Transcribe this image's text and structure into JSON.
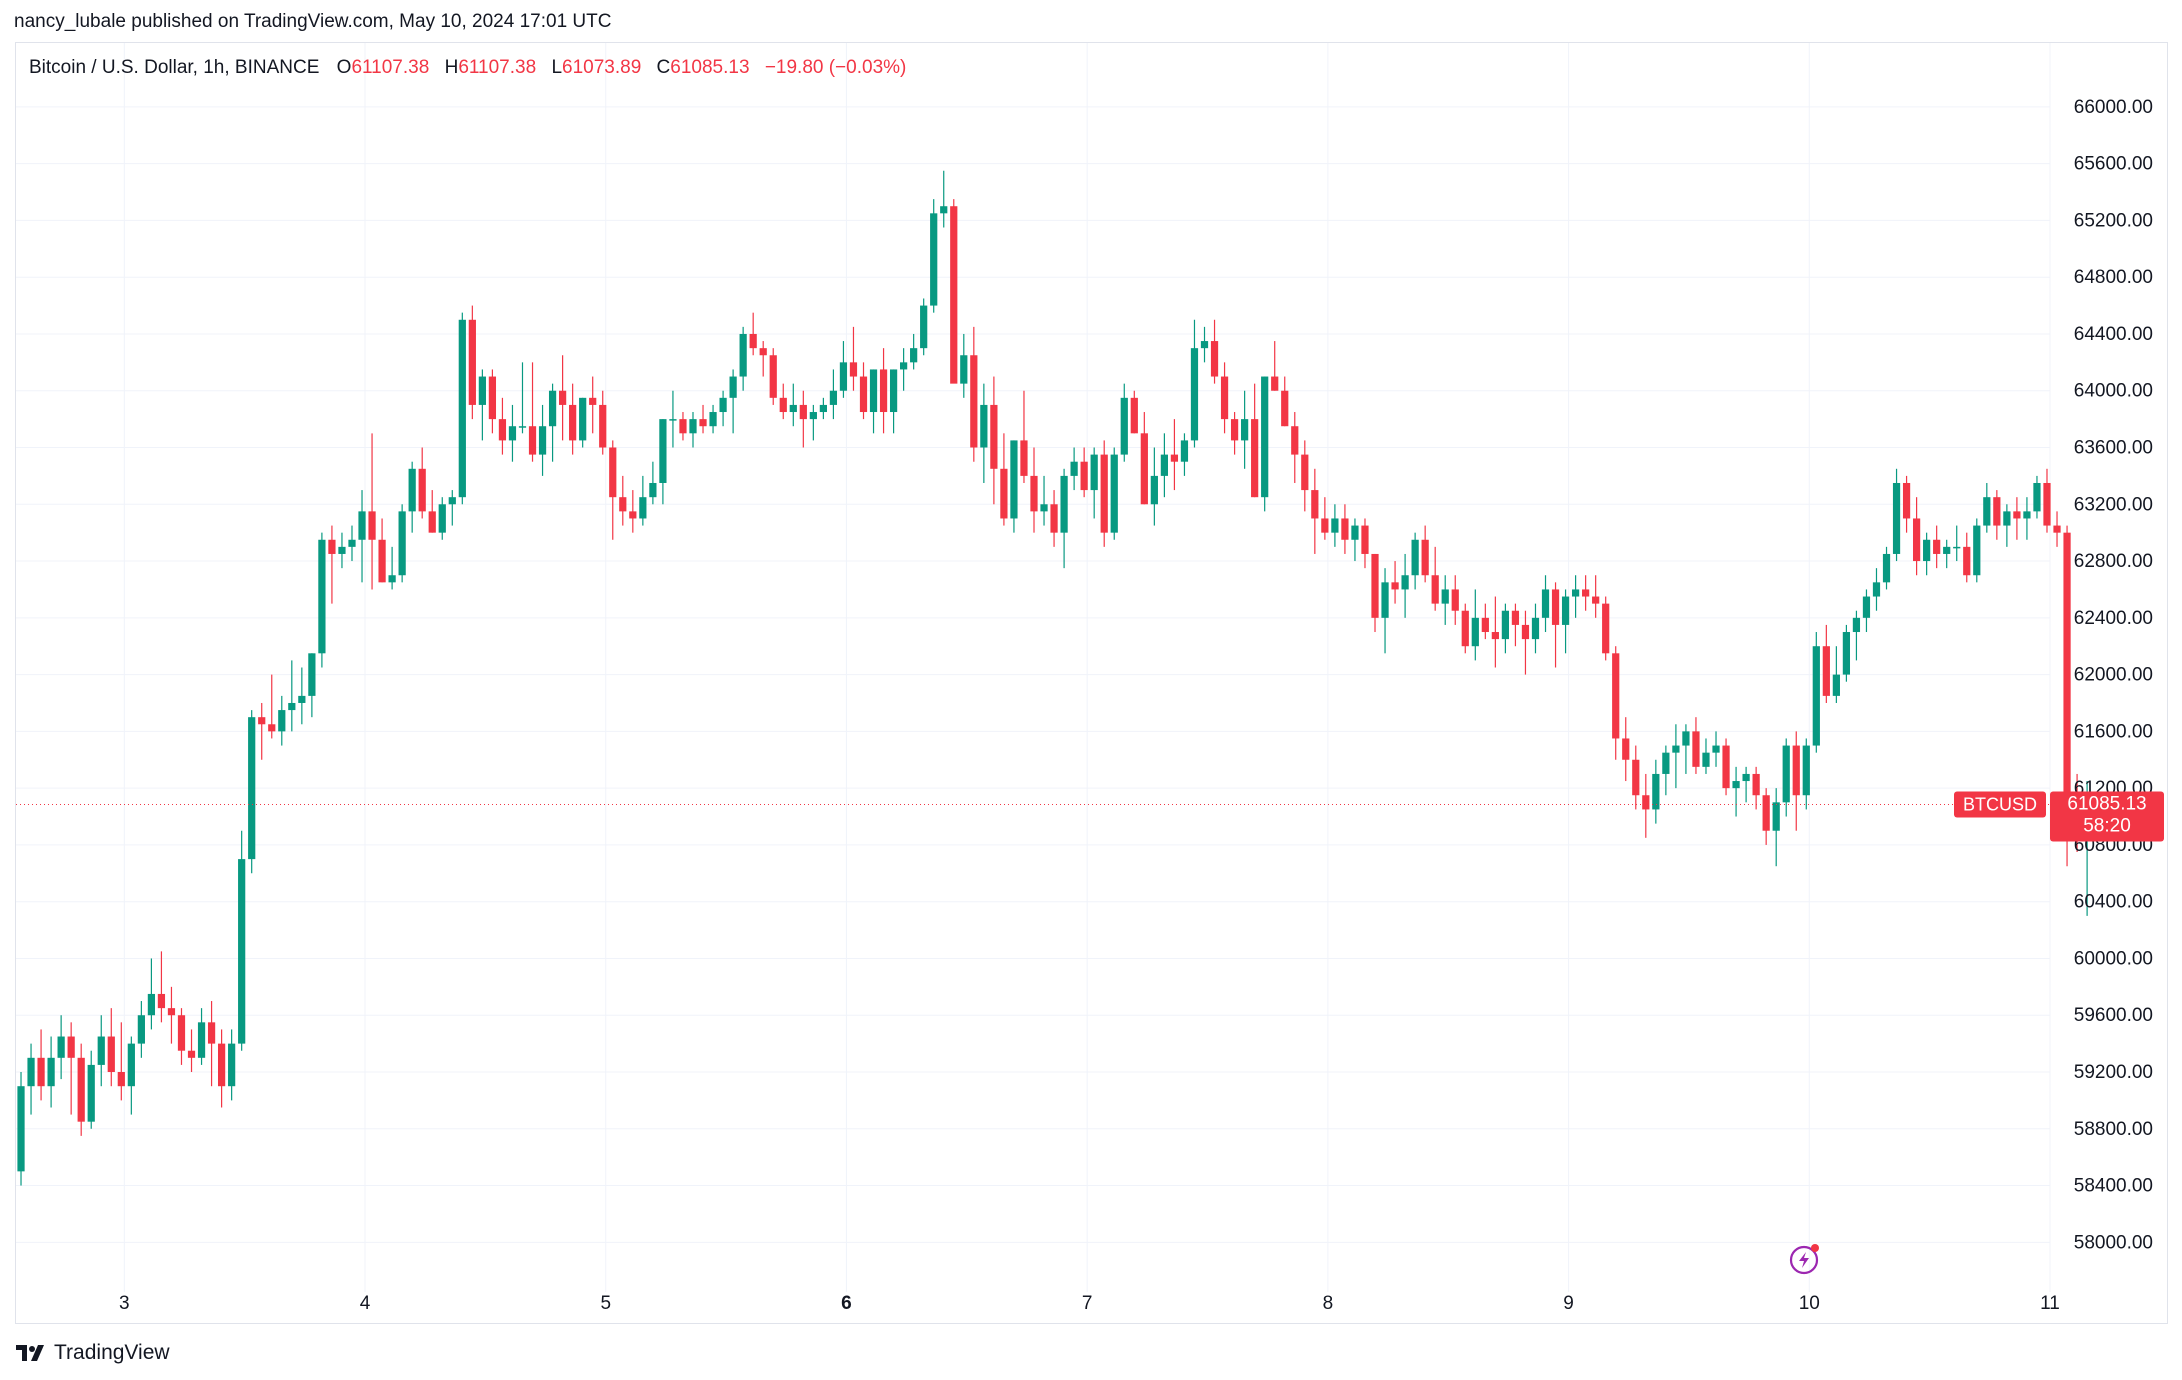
{
  "header": {
    "publisher": "nancy_lubale published on TradingView.com, May 10, 2024 17:01 UTC"
  },
  "legend": {
    "symbol": "Bitcoin / U.S. Dollar, 1h, BINANCE",
    "o_label": "O",
    "o_value": "61107.38",
    "h_label": "H",
    "h_value": "61107.38",
    "l_label": "L",
    "l_value": "61073.89",
    "c_label": "C",
    "c_value": "61085.13",
    "change": "−19.80 (−0.03%)"
  },
  "price_tag": {
    "ticker": "BTCUSD",
    "price": "61085.13",
    "countdown": "58:20"
  },
  "footer": {
    "brand": "TradingView"
  },
  "colors": {
    "up": "#089981",
    "down": "#f23645",
    "grid": "#f0f3fa",
    "axis_text": "#131722",
    "border": "#e0e3eb",
    "bolt": "#9c27b0"
  },
  "chart_data": {
    "type": "candlestick",
    "title": "Bitcoin / U.S. Dollar, 1h, BINANCE",
    "interval": "1h",
    "y_ticks": [
      58000,
      58400,
      58800,
      59200,
      59600,
      60000,
      60400,
      60800,
      61200,
      61600,
      62000,
      62400,
      62800,
      63200,
      63600,
      64000,
      64400,
      64800,
      65200,
      65600,
      66000
    ],
    "y_tick_labels": [
      "58000.00",
      "58400.00",
      "58800.00",
      "59200.00",
      "59600.00",
      "60000.00",
      "60400.00",
      "60800.00",
      "61200.00",
      "61600.00",
      "62000.00",
      "62400.00",
      "62800.00",
      "63200.00",
      "63600.00",
      "64000.00",
      "64400.00",
      "64800.00",
      "65200.00",
      "65600.00",
      "66000.00"
    ],
    "ylim": [
      57650,
      66450
    ],
    "x_ticks": [
      {
        "day": 3,
        "label": "3",
        "bold": false
      },
      {
        "day": 4,
        "label": "4",
        "bold": false
      },
      {
        "day": 5,
        "label": "5",
        "bold": false
      },
      {
        "day": 6,
        "label": "6",
        "bold": true
      },
      {
        "day": 7,
        "label": "7",
        "bold": false
      },
      {
        "day": 8,
        "label": "8",
        "bold": false
      },
      {
        "day": 9,
        "label": "9",
        "bold": false
      },
      {
        "day": 10,
        "label": "10",
        "bold": false
      },
      {
        "day": 11,
        "label": "11",
        "bold": false
      }
    ],
    "xlim_days": [
      2.55,
      11.0
    ],
    "start_day": 2.55,
    "last_close": 61085.13,
    "grid": true,
    "candles": [
      [
        58500,
        59200,
        58400,
        59100
      ],
      [
        59100,
        59400,
        58900,
        59300
      ],
      [
        59300,
        59500,
        59000,
        59100
      ],
      [
        59100,
        59450,
        58950,
        59300
      ],
      [
        59300,
        59600,
        59150,
        59450
      ],
      [
        59450,
        59550,
        58900,
        59300
      ],
      [
        59300,
        59400,
        58750,
        58850
      ],
      [
        58850,
        59350,
        58800,
        59250
      ],
      [
        59250,
        59600,
        59100,
        59450
      ],
      [
        59450,
        59650,
        59100,
        59200
      ],
      [
        59200,
        59550,
        59000,
        59100
      ],
      [
        59100,
        59450,
        58900,
        59400
      ],
      [
        59400,
        59700,
        59300,
        59600
      ],
      [
        59600,
        60000,
        59500,
        59750
      ],
      [
        59750,
        60050,
        59550,
        59650
      ],
      [
        59650,
        59800,
        59400,
        59600
      ],
      [
        59600,
        59650,
        59250,
        59350
      ],
      [
        59350,
        59500,
        59200,
        59300
      ],
      [
        59300,
        59650,
        59250,
        59550
      ],
      [
        59550,
        59700,
        59100,
        59400
      ],
      [
        59400,
        59500,
        58950,
        59100
      ],
      [
        59100,
        59500,
        59000,
        59400
      ],
      [
        59400,
        60900,
        59350,
        60700
      ],
      [
        60700,
        61750,
        60600,
        61700
      ],
      [
        61700,
        61800,
        61400,
        61650
      ],
      [
        61650,
        62000,
        61550,
        61600
      ],
      [
        61600,
        61850,
        61500,
        61750
      ],
      [
        61750,
        62100,
        61600,
        61800
      ],
      [
        61800,
        62050,
        61650,
        61850
      ],
      [
        61850,
        62150,
        61700,
        62150
      ],
      [
        62150,
        63000,
        62050,
        62950
      ],
      [
        62950,
        63050,
        62500,
        62850
      ],
      [
        62850,
        63000,
        62750,
        62900
      ],
      [
        62900,
        63050,
        62800,
        62950
      ],
      [
        62950,
        63300,
        62650,
        63150
      ],
      [
        63150,
        63700,
        62600,
        62950
      ],
      [
        62950,
        63100,
        62650,
        62650
      ],
      [
        62650,
        62900,
        62600,
        62700
      ],
      [
        62700,
        63200,
        62650,
        63150
      ],
      [
        63150,
        63500,
        63000,
        63450
      ],
      [
        63450,
        63600,
        63100,
        63150
      ],
      [
        63150,
        63300,
        63000,
        63000
      ],
      [
        63000,
        63250,
        62950,
        63200
      ],
      [
        63200,
        63300,
        63050,
        63250
      ],
      [
        63250,
        64550,
        63200,
        64500
      ],
      [
        64500,
        64600,
        63800,
        63900
      ],
      [
        63900,
        64150,
        63650,
        64100
      ],
      [
        64100,
        64150,
        63700,
        63800
      ],
      [
        63800,
        63950,
        63550,
        63650
      ],
      [
        63650,
        63900,
        63500,
        63750
      ],
      [
        63750,
        64200,
        63700,
        63750
      ],
      [
        63750,
        64200,
        63500,
        63550
      ],
      [
        63550,
        63900,
        63400,
        63750
      ],
      [
        63750,
        64050,
        63500,
        64000
      ],
      [
        64000,
        64250,
        63650,
        63900
      ],
      [
        63900,
        64050,
        63550,
        63650
      ],
      [
        63650,
        63950,
        63600,
        63950
      ],
      [
        63950,
        64100,
        63700,
        63900
      ],
      [
        63900,
        64000,
        63550,
        63600
      ],
      [
        63600,
        63650,
        62950,
        63250
      ],
      [
        63250,
        63400,
        63050,
        63150
      ],
      [
        63150,
        63300,
        63000,
        63100
      ],
      [
        63100,
        63400,
        63050,
        63250
      ],
      [
        63250,
        63500,
        63200,
        63350
      ],
      [
        63350,
        63800,
        63200,
        63800
      ],
      [
        63800,
        64000,
        63600,
        63800
      ],
      [
        63800,
        63850,
        63650,
        63700
      ],
      [
        63700,
        63850,
        63600,
        63800
      ],
      [
        63800,
        63900,
        63700,
        63750
      ],
      [
        63750,
        63900,
        63700,
        63850
      ],
      [
        63850,
        64000,
        63750,
        63950
      ],
      [
        63950,
        64150,
        63700,
        64100
      ],
      [
        64100,
        64450,
        64000,
        64400
      ],
      [
        64400,
        64550,
        64250,
        64300
      ],
      [
        64300,
        64350,
        64100,
        64250
      ],
      [
        64250,
        64300,
        63900,
        63950
      ],
      [
        63950,
        64050,
        63800,
        63850
      ],
      [
        63850,
        64050,
        63750,
        63900
      ],
      [
        63900,
        64000,
        63600,
        63800
      ],
      [
        63800,
        63900,
        63650,
        63850
      ],
      [
        63850,
        63950,
        63800,
        63900
      ],
      [
        63900,
        64150,
        63800,
        64000
      ],
      [
        64000,
        64350,
        63950,
        64200
      ],
      [
        64200,
        64450,
        64000,
        64100
      ],
      [
        64100,
        64200,
        63800,
        63850
      ],
      [
        63850,
        64150,
        63700,
        64150
      ],
      [
        64150,
        64300,
        63700,
        63850
      ],
      [
        63850,
        64150,
        63700,
        64150
      ],
      [
        64150,
        64300,
        64000,
        64200
      ],
      [
        64200,
        64400,
        64150,
        64300
      ],
      [
        64300,
        64650,
        64250,
        64600
      ],
      [
        64600,
        65350,
        64550,
        65250
      ],
      [
        65250,
        65550,
        65150,
        65300
      ],
      [
        65300,
        65350,
        64100,
        64050
      ],
      [
        64050,
        64400,
        63950,
        64250
      ],
      [
        64250,
        64450,
        63500,
        63600
      ],
      [
        63600,
        64050,
        63350,
        63900
      ],
      [
        63900,
        64100,
        63200,
        63450
      ],
      [
        63450,
        63700,
        63050,
        63100
      ],
      [
        63100,
        63650,
        63000,
        63650
      ],
      [
        63650,
        64000,
        63350,
        63400
      ],
      [
        63400,
        63600,
        63000,
        63150
      ],
      [
        63150,
        63400,
        63050,
        63200
      ],
      [
        63200,
        63300,
        62900,
        63000
      ],
      [
        63000,
        63450,
        62750,
        63400
      ],
      [
        63400,
        63600,
        63300,
        63500
      ],
      [
        63500,
        63600,
        63250,
        63300
      ],
      [
        63300,
        63600,
        63100,
        63550
      ],
      [
        63550,
        63650,
        62900,
        63000
      ],
      [
        63000,
        63600,
        62950,
        63550
      ],
      [
        63550,
        64050,
        63500,
        63950
      ],
      [
        63950,
        64000,
        63700,
        63700
      ],
      [
        63700,
        63850,
        63200,
        63200
      ],
      [
        63200,
        63600,
        63050,
        63400
      ],
      [
        63400,
        63700,
        63250,
        63550
      ],
      [
        63550,
        63800,
        63300,
        63500
      ],
      [
        63500,
        63700,
        63400,
        63650
      ],
      [
        63650,
        64500,
        63600,
        64300
      ],
      [
        64300,
        64450,
        64200,
        64350
      ],
      [
        64350,
        64500,
        64050,
        64100
      ],
      [
        64100,
        64200,
        63700,
        63800
      ],
      [
        63800,
        63850,
        63550,
        63650
      ],
      [
        63650,
        64000,
        63450,
        63800
      ],
      [
        63800,
        64050,
        63250,
        63250
      ],
      [
        63250,
        64100,
        63150,
        64100
      ],
      [
        64100,
        64350,
        64000,
        64000
      ],
      [
        64000,
        64100,
        63750,
        63750
      ],
      [
        63750,
        63850,
        63350,
        63550
      ],
      [
        63550,
        63650,
        63150,
        63300
      ],
      [
        63300,
        63450,
        62850,
        63100
      ],
      [
        63100,
        63250,
        62950,
        63000
      ],
      [
        63000,
        63200,
        62900,
        63100
      ],
      [
        63100,
        63200,
        62850,
        62950
      ],
      [
        62950,
        63100,
        62800,
        63050
      ],
      [
        63050,
        63100,
        62750,
        62850
      ],
      [
        62850,
        62850,
        62300,
        62400
      ],
      [
        62400,
        62750,
        62150,
        62650
      ],
      [
        62650,
        62800,
        62500,
        62600
      ],
      [
        62600,
        62850,
        62400,
        62700
      ],
      [
        62700,
        63000,
        62600,
        62950
      ],
      [
        62950,
        63050,
        62650,
        62700
      ],
      [
        62700,
        62900,
        62450,
        62500
      ],
      [
        62500,
        62700,
        62350,
        62600
      ],
      [
        62600,
        62700,
        62350,
        62450
      ],
      [
        62450,
        62500,
        62150,
        62200
      ],
      [
        62200,
        62600,
        62100,
        62400
      ],
      [
        62400,
        62500,
        62250,
        62300
      ],
      [
        62300,
        62550,
        62050,
        62250
      ],
      [
        62250,
        62500,
        62150,
        62450
      ],
      [
        62450,
        62500,
        62200,
        62350
      ],
      [
        62350,
        62450,
        62000,
        62250
      ],
      [
        62250,
        62500,
        62150,
        62400
      ],
      [
        62400,
        62700,
        62300,
        62600
      ],
      [
        62600,
        62650,
        62050,
        62350
      ],
      [
        62350,
        62600,
        62150,
        62550
      ],
      [
        62550,
        62700,
        62400,
        62600
      ],
      [
        62600,
        62700,
        62450,
        62550
      ],
      [
        62550,
        62700,
        62400,
        62500
      ],
      [
        62500,
        62550,
        62100,
        62150
      ],
      [
        62150,
        62200,
        61400,
        61550
      ],
      [
        61550,
        61700,
        61250,
        61400
      ],
      [
        61400,
        61500,
        61050,
        61150
      ],
      [
        61150,
        61300,
        60850,
        61050
      ],
      [
        61050,
        61400,
        60950,
        61300
      ],
      [
        61300,
        61500,
        61150,
        61450
      ],
      [
        61450,
        61650,
        61200,
        61500
      ],
      [
        61500,
        61650,
        61300,
        61600
      ],
      [
        61600,
        61700,
        61300,
        61350
      ],
      [
        61350,
        61550,
        61300,
        61450
      ],
      [
        61450,
        61600,
        61350,
        61500
      ],
      [
        61500,
        61550,
        61150,
        61200
      ],
      [
        61200,
        61350,
        61000,
        61250
      ],
      [
        61250,
        61350,
        61100,
        61300
      ],
      [
        61300,
        61350,
        61050,
        61150
      ],
      [
        61150,
        61200,
        60800,
        60900
      ],
      [
        60900,
        61200,
        60650,
        61100
      ],
      [
        61100,
        61550,
        61000,
        61500
      ],
      [
        61500,
        61600,
        60900,
        61150
      ],
      [
        61150,
        61550,
        61050,
        61500
      ],
      [
        61500,
        62300,
        61450,
        62200
      ],
      [
        62200,
        62350,
        61800,
        61850
      ],
      [
        61850,
        62200,
        61800,
        62000
      ],
      [
        62000,
        62350,
        61950,
        62300
      ],
      [
        62300,
        62450,
        62100,
        62400
      ],
      [
        62400,
        62600,
        62300,
        62550
      ],
      [
        62550,
        62750,
        62450,
        62650
      ],
      [
        62650,
        62900,
        62600,
        62850
      ],
      [
        62850,
        63450,
        62800,
        63350
      ],
      [
        63350,
        63400,
        63000,
        63100
      ],
      [
        63100,
        63250,
        62700,
        62800
      ],
      [
        62800,
        63000,
        62700,
        62950
      ],
      [
        62950,
        63050,
        62750,
        62850
      ],
      [
        62850,
        62950,
        62750,
        62900
      ],
      [
        62900,
        63050,
        62800,
        62900
      ],
      [
        62900,
        63000,
        62650,
        62700
      ],
      [
        62700,
        63100,
        62650,
        63050
      ],
      [
        63050,
        63350,
        63000,
        63250
      ],
      [
        63250,
        63300,
        62950,
        63050
      ],
      [
        63050,
        63200,
        62900,
        63150
      ],
      [
        63150,
        63250,
        62950,
        63100
      ],
      [
        63100,
        63250,
        62950,
        63150
      ],
      [
        63150,
        63400,
        63100,
        63350
      ],
      [
        63350,
        63450,
        63000,
        63050
      ],
      [
        63050,
        63150,
        62900,
        63000
      ],
      [
        63000,
        63050,
        60650,
        61100
      ],
      [
        61100,
        61300,
        60750,
        60950
      ],
      [
        60950,
        61250,
        60300,
        61100
      ],
      [
        61107.38,
        61107.38,
        61073.89,
        61085.13
      ]
    ]
  }
}
